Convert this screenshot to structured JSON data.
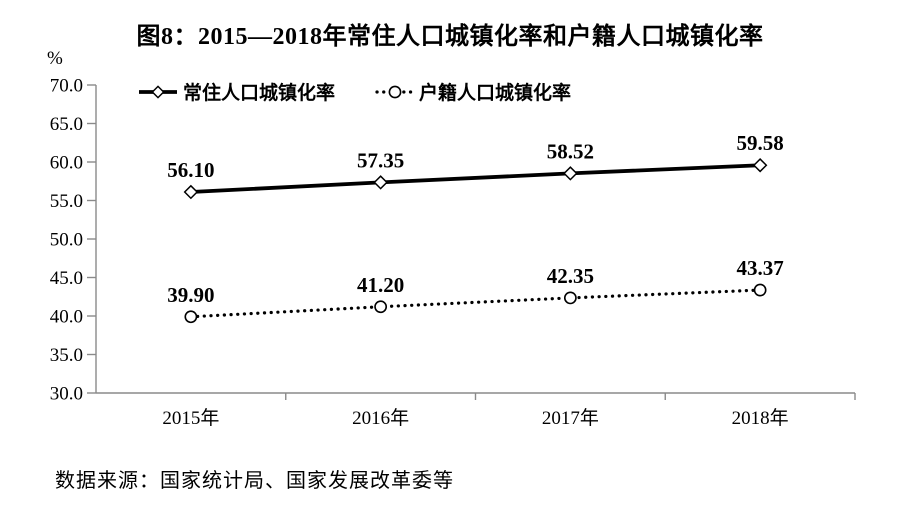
{
  "page": {
    "source_note": "数据来源：国家统计局、国家发展改革委等"
  },
  "chart_data": {
    "type": "line",
    "title": "图8：2015—2018年常住人口城镇化率和户籍人口城镇化率",
    "y_unit": "%",
    "categories": [
      "2015年",
      "2016年",
      "2017年",
      "2018年"
    ],
    "series": [
      {
        "name": "常住人口城镇化率",
        "marker": "diamond",
        "line_style": "solid",
        "values": [
          56.1,
          57.35,
          58.52,
          59.58
        ],
        "labels": [
          "56.10",
          "57.35",
          "58.52",
          "59.58"
        ]
      },
      {
        "name": "户籍人口城镇化率",
        "marker": "circle",
        "line_style": "dotted",
        "values": [
          39.9,
          41.2,
          42.35,
          43.37
        ],
        "labels": [
          "39.90",
          "41.20",
          "42.35",
          "43.37"
        ]
      }
    ],
    "ylim": [
      30.0,
      70.0
    ],
    "y_ticks": [
      30,
      35,
      40,
      45,
      50,
      55,
      60,
      65,
      70
    ],
    "y_tick_labels": [
      "30.0",
      "35.0",
      "40.0",
      "45.0",
      "50.0",
      "55.0",
      "60.0",
      "65.0",
      "70.0"
    ],
    "grid": false,
    "legend_position": "top-inside",
    "colors": {
      "line": "#000000",
      "axis": "#8a8a8a",
      "text": "#000000",
      "background": "#ffffff"
    }
  }
}
